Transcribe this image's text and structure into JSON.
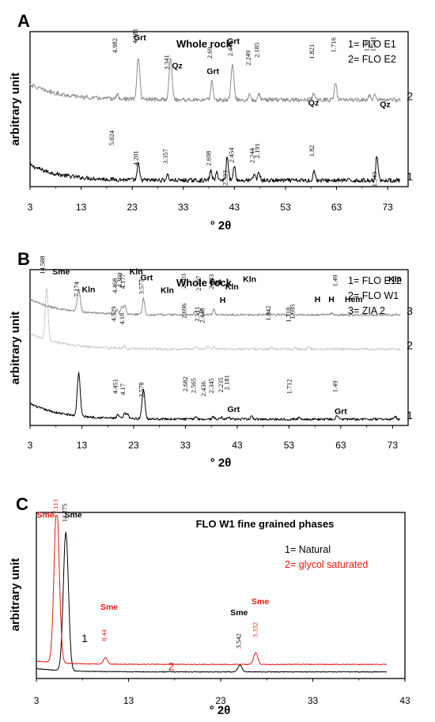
{
  "chart_data": [
    {
      "panel": "A",
      "type": "line",
      "title": "Whole rock",
      "xlabel": "° 2θ",
      "ylabel": "arbitrary unit",
      "xlim": [
        3,
        77
      ],
      "x_ticks": [
        3,
        13,
        23,
        33,
        43,
        53,
        63,
        73
      ],
      "grid": false,
      "legend": [
        "1= FLO E1",
        "2= FLO E2"
      ],
      "legend_position": "top-right",
      "series": [
        {
          "label": "1",
          "color": "#000000",
          "offset": 0,
          "scale": 0.3,
          "peaks": [
            [
              24.2,
              1.0
            ],
            [
              29.9,
              0.35
            ],
            [
              38.4,
              0.6
            ],
            [
              39.6,
              0.5
            ],
            [
              41.6,
              1.5
            ],
            [
              43.0,
              0.9
            ],
            [
              46.9,
              0.4
            ],
            [
              47.8,
              0.5
            ],
            [
              58.6,
              0.6
            ],
            [
              70.9,
              1.6
            ]
          ]
        },
        {
          "label": "2",
          "color": "#8c8c8c",
          "offset": 0.52,
          "scale": 0.3,
          "peaks": [
            [
              20.1,
              0.3
            ],
            [
              24.2,
              2.6
            ],
            [
              30.5,
              2.6
            ],
            [
              38.6,
              1.2
            ],
            [
              42.6,
              2.2
            ],
            [
              46.0,
              0.3
            ],
            [
              47.8,
              0.4
            ],
            [
              58.5,
              0.4
            ],
            [
              62.8,
              1.1
            ],
            [
              69.4,
              0.3
            ],
            [
              70.5,
              0.3
            ]
          ]
        }
      ],
      "annotations": [
        {
          "text": "Grt",
          "x": 24.5,
          "kind": "mineral",
          "series": "2",
          "dy": -0.05
        },
        {
          "text": "Qz",
          "x": 31.8,
          "kind": "mineral",
          "series": "2",
          "dy": -0.23
        },
        {
          "text": "Grt",
          "x": 38.8,
          "kind": "mineral",
          "series": "2",
          "dy": -0.12
        },
        {
          "text": "Grt",
          "x": 42.8,
          "kind": "mineral",
          "series": "2",
          "dy": -0.03
        },
        {
          "text": "Qz",
          "x": 58.5,
          "kind": "mineral",
          "series": "2",
          "dy": -0.24
        },
        {
          "text": "Qz",
          "x": 72.5,
          "kind": "mineral",
          "series": "2",
          "dy": -0.24
        },
        {
          "text": "4.181",
          "x": 24.0,
          "kind": "dval",
          "series": "2",
          "dy": 0.0
        },
        {
          "text": "3.341",
          "x": 30.2,
          "kind": "dval",
          "series": "2",
          "dy": -0.17
        },
        {
          "text": "4.982",
          "x": 20.0,
          "kind": "dval",
          "series": "2",
          "dy": 0.18
        },
        {
          "text": "2.69",
          "x": 38.6,
          "kind": "dval",
          "series": "2",
          "dy": 0.05
        },
        {
          "text": "2.446",
          "x": 42.6,
          "kind": "dval",
          "series": "2",
          "dy": -0.04
        },
        {
          "text": "2.249",
          "x": 46.1,
          "kind": "dval",
          "series": "2",
          "dy": 0.1
        },
        {
          "text": "2.185",
          "x": 47.8,
          "kind": "dval",
          "series": "2",
          "dy": 0.14
        },
        {
          "text": "1.821",
          "x": 58.6,
          "kind": "dval",
          "series": "2",
          "dy": 0.13
        },
        {
          "text": "1.716",
          "x": 62.8,
          "kind": "dval",
          "series": "2",
          "dy": 0.1
        },
        {
          "text": "1.56",
          "x": 69.3,
          "kind": "dval",
          "series": "2",
          "dy": 0.19
        },
        {
          "text": "1.541",
          "x": 70.6,
          "kind": "dval",
          "series": "2",
          "dy": 0.19
        },
        {
          "text": "5.024",
          "x": 19.4,
          "kind": "dval",
          "series": "1",
          "dy": 0.03
        },
        {
          "text": "4.201",
          "x": 24.1,
          "kind": "dval",
          "series": "1",
          "dy": -0.1
        },
        {
          "text": "3.357",
          "x": 29.9,
          "kind": "dval",
          "series": "1",
          "dy": -0.02
        },
        {
          "text": "2.698",
          "x": 38.4,
          "kind": "dval",
          "series": "1",
          "dy": -0.06
        },
        {
          "text": "2.523",
          "x": 41.6,
          "kind": "dval",
          "series": "1",
          "dy": -0.28
        },
        {
          "text": "2.454",
          "x": 42.9,
          "kind": "dval",
          "series": "1",
          "dy": -0.07
        },
        {
          "text": "2.244",
          "x": 46.9,
          "kind": "dval",
          "series": "1",
          "dy": -0.02
        },
        {
          "text": "2.191",
          "x": 47.9,
          "kind": "dval",
          "series": "1",
          "dy": 0.0
        },
        {
          "text": "1.82",
          "x": 58.6,
          "kind": "dval",
          "series": "1",
          "dy": 0.0
        },
        {
          "text": "1.543",
          "x": 70.9,
          "kind": "dval",
          "series": "1",
          "dy": -0.3
        }
      ]
    },
    {
      "panel": "B",
      "type": "line",
      "title": "Whole rock",
      "xlabel": "° 2θ",
      "ylabel": "arbitrary unit",
      "xlim": [
        3,
        76
      ],
      "x_ticks": [
        3,
        13,
        23,
        33,
        43,
        53,
        63,
        73
      ],
      "grid": false,
      "legend": [
        "1= FLO E12",
        "2= FLO W1",
        "3= ZIA 2"
      ],
      "legend_position": "top-right",
      "series": [
        {
          "label": "1",
          "color": "#000000",
          "offset": 0,
          "scale": 0.16,
          "peaks": [
            [
              12.4,
              5.0
            ],
            [
              20.0,
              0.4
            ],
            [
              21.3,
              0.6
            ],
            [
              21.9,
              0.5
            ],
            [
              24.9,
              3.4
            ],
            [
              35.0,
              0.3
            ],
            [
              38.4,
              0.3
            ],
            [
              40.0,
              0.2
            ],
            [
              41.4,
              0.3
            ],
            [
              45.8,
              0.3
            ],
            [
              55.0,
              0.2
            ],
            [
              62.3,
              0.4
            ],
            [
              73.5,
              0.3
            ]
          ]
        },
        {
          "label": "2",
          "color": "#c8c8c8",
          "offset": 0.45,
          "scale": 0.16,
          "peaks": [
            [
              6.2,
              6.0
            ],
            [
              21.2,
              0.3
            ],
            [
              35.1,
              0.3
            ],
            [
              37.3,
              0.3
            ],
            [
              38.5,
              0.3
            ],
            [
              49.6,
              0.2
            ],
            [
              54.2,
              0.2
            ],
            [
              56.8,
              0.2
            ]
          ]
        },
        {
          "label": "3",
          "color": "#8c8c8c",
          "offset": 0.67,
          "scale": 0.16,
          "peaks": [
            [
              12.4,
              2.6
            ],
            [
              19.8,
              0.5
            ],
            [
              20.7,
              0.8
            ],
            [
              21.3,
              1.0
            ],
            [
              24.9,
              1.8
            ],
            [
              34.9,
              0.5
            ],
            [
              36.0,
              0.6
            ],
            [
              38.5,
              0.6
            ],
            [
              49.0,
              0.2
            ],
            [
              61.2,
              0.2
            ]
          ]
        }
      ],
      "annotations": [
        {
          "text": "Sme",
          "x": 9.0,
          "kind": "mineral",
          "series": "2",
          "dy": 0.12
        },
        {
          "text": "Kln",
          "x": 14.3,
          "kind": "mineral",
          "series": "3",
          "dy": -0.16
        },
        {
          "text": "Kln",
          "x": 23.5,
          "kind": "mineral",
          "series": "3",
          "dy": 0.0
        },
        {
          "text": "Grt",
          "x": 25.5,
          "kind": "mineral",
          "series": "3",
          "dy": -0.04
        },
        {
          "text": "Kln",
          "x": 29.5,
          "kind": "mineral",
          "series": "3",
          "dy": -0.12
        },
        {
          "text": "Grt",
          "x": 38.8,
          "kind": "mineral",
          "series": "3",
          "dy": 0.0
        },
        {
          "text": "Kln",
          "x": 42.0,
          "kind": "mineral",
          "series": "3",
          "dy": -0.03
        },
        {
          "text": "Kln",
          "x": 45.4,
          "kind": "mineral",
          "series": "3",
          "dy": 0.04
        },
        {
          "text": "Kln",
          "x": 73.5,
          "kind": "mineral",
          "series": "3",
          "dy": 0.04
        },
        {
          "text": "H",
          "x": 40.2,
          "kind": "mineral",
          "series": "2",
          "dy": 0.12
        },
        {
          "text": "H",
          "x": 58.5,
          "kind": "mineral",
          "series": "2",
          "dy": 0.13
        },
        {
          "text": "H",
          "x": 61.2,
          "kind": "mineral",
          "series": "2",
          "dy": 0.13
        },
        {
          "text": "Hem",
          "x": 65.5,
          "kind": "mineral",
          "series": "2",
          "dy": 0.13
        },
        {
          "text": "Grt",
          "x": 42.3,
          "kind": "mineral",
          "series": "1",
          "dy": -0.13
        },
        {
          "text": "Grt",
          "x": 63.0,
          "kind": "mineral",
          "series": "1",
          "dy": -0.15
        },
        {
          "text": "14.588",
          "x": 5.8,
          "kind": "dval",
          "series": "2",
          "dy": 0.08
        },
        {
          "text": "7.174",
          "x": 12.4,
          "kind": "dval",
          "series": "3",
          "dy": -0.12
        },
        {
          "text": "4.468",
          "x": 19.8,
          "kind": "dval",
          "series": "3",
          "dy": 0.02
        },
        {
          "text": "4.369",
          "x": 20.7,
          "kind": "dval",
          "series": "3",
          "dy": 0.04
        },
        {
          "text": "4.177",
          "x": 21.3,
          "kind": "dval",
          "series": "3",
          "dy": 0.02
        },
        {
          "text": "3.577",
          "x": 24.9,
          "kind": "dval",
          "series": "3",
          "dy": -0.06
        },
        {
          "text": "2.703",
          "x": 33.1,
          "kind": "dval",
          "series": "3",
          "dy": 0.05
        },
        {
          "text": "2.497",
          "x": 36.0,
          "kind": "dval",
          "series": "3",
          "dy": 0.03
        },
        {
          "text": "2.343",
          "x": 38.4,
          "kind": "dval",
          "series": "3",
          "dy": 0.04
        },
        {
          "text": "1.49",
          "x": 62.3,
          "kind": "dval",
          "series": "3",
          "dy": 0.08
        },
        {
          "text": "4.529",
          "x": 19.6,
          "kind": "dval",
          "series": "2",
          "dy": 0.07
        },
        {
          "text": "4.18",
          "x": 21.2,
          "kind": "dval",
          "series": "2",
          "dy": 0.05
        },
        {
          "text": "2.696",
          "x": 33.2,
          "kind": "dval",
          "series": "2",
          "dy": 0.09
        },
        {
          "text": "2.511",
          "x": 35.7,
          "kind": "dval",
          "series": "2",
          "dy": 0.07
        },
        {
          "text": "2.448",
          "x": 36.7,
          "kind": "dval",
          "series": "2",
          "dy": 0.06
        },
        {
          "text": "1.842",
          "x": 49.4,
          "kind": "dval",
          "series": "2",
          "dy": 0.08
        },
        {
          "text": "1.718",
          "x": 53.3,
          "kind": "dval",
          "series": "2",
          "dy": 0.07
        },
        {
          "text": "1.695",
          "x": 54.1,
          "kind": "dval",
          "series": "2",
          "dy": 0.09
        },
        {
          "text": "4.451",
          "x": 19.9,
          "kind": "dval",
          "series": "1",
          "dy": 0.05
        },
        {
          "text": "4.17",
          "x": 21.3,
          "kind": "dval",
          "series": "1",
          "dy": 0.03
        },
        {
          "text": "3.578",
          "x": 24.9,
          "kind": "dval",
          "series": "1",
          "dy": -0.14
        },
        {
          "text": "2.682",
          "x": 33.4,
          "kind": "dval",
          "series": "1",
          "dy": 0.07
        },
        {
          "text": "2.565",
          "x": 35.0,
          "kind": "dval",
          "series": "1",
          "dy": 0.06
        },
        {
          "text": "2.436",
          "x": 36.9,
          "kind": "dval",
          "series": "1",
          "dy": 0.04
        },
        {
          "text": "2.345",
          "x": 38.4,
          "kind": "dval",
          "series": "1",
          "dy": 0.06
        },
        {
          "text": "2.235",
          "x": 40.3,
          "kind": "dval",
          "series": "1",
          "dy": 0.07
        },
        {
          "text": "2.181",
          "x": 41.4,
          "kind": "dval",
          "series": "1",
          "dy": 0.08
        },
        {
          "text": "1.712",
          "x": 53.5,
          "kind": "dval",
          "series": "1",
          "dy": 0.06
        },
        {
          "text": "1.49",
          "x": 62.3,
          "kind": "dval",
          "series": "1",
          "dy": 0.06
        }
      ]
    },
    {
      "panel": "C",
      "type": "line",
      "title": "FLO W1 fine grained phases",
      "xlabel": "° 2θ",
      "ylabel": "arbitrary unit",
      "xlim": [
        3,
        43
      ],
      "x_ticks": [
        3,
        13,
        23,
        33,
        43
      ],
      "grid": false,
      "legend": [
        "1= Natural",
        "2= glycol saturated"
      ],
      "legend_colors": [
        "#000000",
        "#e8160c"
      ],
      "legend_position": "top-right",
      "series": [
        {
          "label": "1",
          "color": "#000000",
          "offset": 0,
          "scale": 0.16,
          "peaks": [
            [
              6.2,
              5.2
            ],
            [
              25.1,
              0.25
            ]
          ],
          "xmax": 41
        },
        {
          "label": "2",
          "color": "#e8160c",
          "offset": 0.045,
          "scale": 0.16,
          "peaks": [
            [
              5.2,
              6.0
            ],
            [
              10.5,
              0.25
            ],
            [
              26.8,
              0.45
            ]
          ],
          "xmax": 41
        }
      ],
      "annotations": [
        {
          "text": "Sme",
          "x": 4.0,
          "kind": "mineral",
          "series": "2",
          "dy": 0.04,
          "color": "#e8160c"
        },
        {
          "text": "17.113",
          "x": 5.3,
          "kind": "dval",
          "series": "2",
          "dy": 0.0,
          "color": "#e8160c"
        },
        {
          "text": "Sme",
          "x": 7.0,
          "kind": "mineral",
          "series": "1",
          "dy": 0.05
        },
        {
          "text": "14.275",
          "x": 6.3,
          "kind": "dval",
          "series": "1",
          "dy": -0.02
        },
        {
          "text": "Sme",
          "x": 10.9,
          "kind": "mineral",
          "series": "2",
          "dy": 0.13,
          "color": "#e8160c"
        },
        {
          "text": "8.44",
          "x": 10.6,
          "kind": "dval",
          "series": "2",
          "dy": 0.01,
          "color": "#e8160c"
        },
        {
          "text": "Sme",
          "x": 25.0,
          "kind": "mineral",
          "series": "1",
          "dy": 0.14
        },
        {
          "text": "3.542",
          "x": 25.2,
          "kind": "dval",
          "series": "1",
          "dy": 0.01
        },
        {
          "text": "Sme",
          "x": 27.3,
          "kind": "mineral",
          "series": "2",
          "dy": 0.13,
          "color": "#e8160c"
        },
        {
          "text": "3.332",
          "x": 27.0,
          "kind": "dval",
          "series": "2",
          "dy": 0.0,
          "color": "#e8160c"
        }
      ]
    }
  ]
}
